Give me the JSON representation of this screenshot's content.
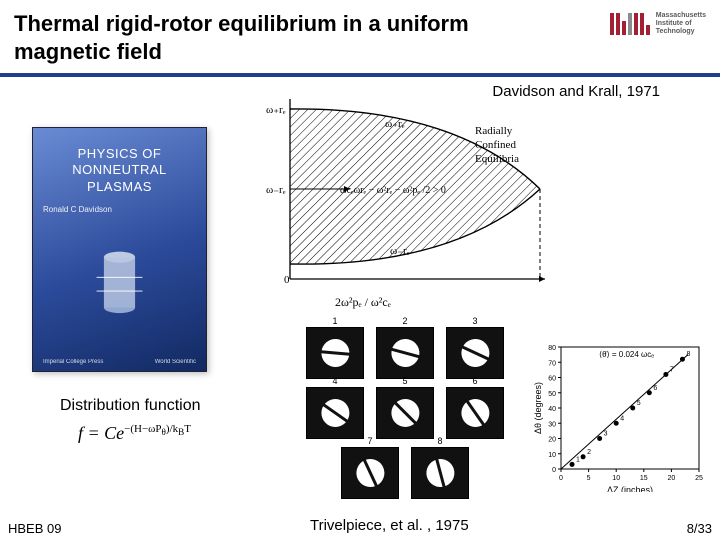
{
  "header": {
    "title": "Thermal rigid-rotor equilibrium in a uniform magnetic field",
    "underline_color": "#1f3f8f",
    "logo": {
      "bar_color": "#a31f34",
      "grey_bar_color": "#8a8b8c",
      "text_line1": "Massachusetts",
      "text_line2": "Institute of",
      "text_line3": "Technology"
    }
  },
  "citation_top": "Davidson and Krall, 1971",
  "book": {
    "title_line1": "PHYSICS OF",
    "title_line2": "NONNEUTRAL PLASMAS",
    "author": "Ronald C Davidson",
    "footer_left": "Imperial College Press",
    "footer_right": "World Scientific"
  },
  "phase_diagram": {
    "type": "diagram",
    "y_top_label": "ω₊rₑ",
    "y_mid_label": "ω₋rₑ",
    "region_label_line1": "Radially",
    "region_label_line2": "Confined",
    "region_label_line3": "Equilibria",
    "curve_plus_label": "ω₊rₑ",
    "curve_minus_label": "ω₋rₑ",
    "condition_label": "ωcₑωrₑ − ω²rₑ − ω²pₑ /2 > 0",
    "origin_label": "0",
    "x_axis_label": "2ω²pₑ / ω²cₑ",
    "line_color": "#000000",
    "hatch_color": "#000000",
    "background_color": "#ffffff"
  },
  "distribution": {
    "label": "Distribution function",
    "formula_html": "f = Ce<sup>−(H−ωP<sub>θ</sub>)/k<sub>B</sub>T</sup>"
  },
  "rotation_grid": {
    "type": "infographic",
    "cell_bg": "#111111",
    "shape_fill": "#ffffff",
    "labels": [
      "1",
      "2",
      "3",
      "4",
      "5",
      "6",
      "7",
      "8"
    ],
    "angles_deg": [
      5,
      15,
      25,
      35,
      45,
      55,
      65,
      75
    ]
  },
  "scatter_plot": {
    "type": "scatter",
    "x_label": "ΔZ (inches)",
    "y_label": "Δθ (degrees)",
    "annotation": "⟨θ̇⟩ = 0.024 ωcₑ",
    "xlim": [
      0,
      25
    ],
    "ylim": [
      0,
      80
    ],
    "xticks": [
      0,
      5,
      10,
      15,
      20,
      25
    ],
    "yticks": [
      0,
      10,
      20,
      30,
      40,
      50,
      60,
      70,
      80
    ],
    "points_x": [
      2,
      4,
      7,
      10,
      13,
      16,
      19,
      22
    ],
    "points_y": [
      3,
      8,
      20,
      30,
      40,
      50,
      62,
      72
    ],
    "point_labels": [
      "1",
      "2",
      "3",
      "4",
      "5",
      "6",
      "7",
      "8"
    ],
    "line_color": "#000000",
    "point_fill": "#000000",
    "axis_color": "#000000",
    "label_fontsize": 9,
    "tick_fontsize": 7
  },
  "citation_bottom": "Trivelpiece, et al. , 1975",
  "footer": {
    "left": "HBEB 09",
    "page": "8/33"
  }
}
